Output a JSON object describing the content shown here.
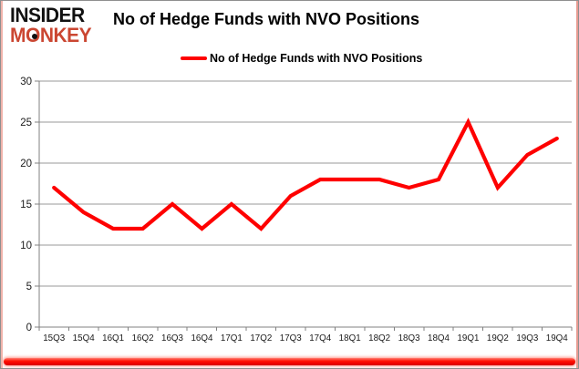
{
  "logo": {
    "line1": "INSIDER",
    "line2": "MONKEY"
  },
  "title": "No of Hedge Funds with NVO Positions",
  "legend": {
    "label": "No of Hedge Funds with NVO Positions"
  },
  "colors": {
    "series": "#fe0000",
    "logo_accent": "#cb4732",
    "grid": "#9a9a9a",
    "axis": "#808080",
    "tick_label": "#1a1a1a",
    "bottom_bar": "#ff0000"
  },
  "chart_data": {
    "type": "line",
    "title": "No of Hedge Funds with NVO Positions",
    "categories": [
      "15Q3",
      "15Q4",
      "16Q1",
      "16Q2",
      "16Q3",
      "16Q4",
      "17Q1",
      "17Q2",
      "17Q3",
      "17Q4",
      "18Q1",
      "18Q2",
      "18Q3",
      "18Q4",
      "19Q1",
      "19Q2",
      "19Q3",
      "19Q4"
    ],
    "series": [
      {
        "name": "No of Hedge Funds with NVO Positions",
        "values": [
          17,
          14,
          12,
          12,
          15,
          12,
          15,
          12,
          16,
          18,
          18,
          18,
          17,
          18,
          25,
          17,
          21,
          23
        ]
      }
    ],
    "xlabel": "",
    "ylabel": "",
    "ylim": [
      0,
      30
    ],
    "yticks": [
      0,
      5,
      10,
      15,
      20,
      25,
      30
    ],
    "grid": true,
    "legend_position": "top-center"
  }
}
